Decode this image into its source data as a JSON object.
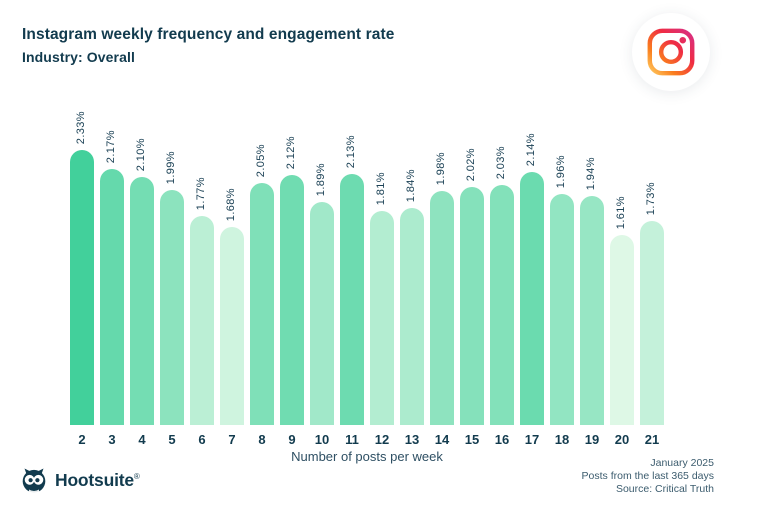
{
  "header": {
    "title": "Instagram weekly frequency and engagement rate",
    "subtitle": "Industry: Overall"
  },
  "chart_data": {
    "type": "bar",
    "title": "Instagram weekly frequency and engagement rate",
    "subtitle": "Industry: Overall",
    "xlabel": "Number of posts per week",
    "ylabel": "Engagement rate",
    "ylim": [
      0,
      2.33
    ],
    "grid": false,
    "legend": "none",
    "categories": [
      2,
      3,
      4,
      5,
      6,
      7,
      8,
      9,
      10,
      11,
      12,
      13,
      14,
      15,
      16,
      17,
      18,
      19,
      20,
      21
    ],
    "values": [
      2.33,
      2.17,
      2.1,
      1.99,
      1.77,
      1.68,
      2.05,
      2.12,
      1.89,
      2.13,
      1.81,
      1.84,
      1.98,
      2.02,
      2.03,
      2.14,
      1.96,
      1.94,
      1.61,
      1.73
    ],
    "value_labels": [
      "2.33%",
      "2.17%",
      "2.10%",
      "1.99%",
      "1.77%",
      "1.68%",
      "2.05%",
      "2.12%",
      "1.89%",
      "2.13%",
      "1.81%",
      "1.84%",
      "1.98%",
      "2.02%",
      "2.03%",
      "2.14%",
      "1.96%",
      "1.94%",
      "1.61%",
      "1.73%"
    ],
    "colors": {
      "bar_max": "#42d09b",
      "bar_min": "#def8e6",
      "value_label": "#1c4256",
      "tick_label": "#123b4e"
    }
  },
  "brand": {
    "logo_text": "Hootsuite",
    "registered_mark": "®",
    "logo_color": "#123b4e"
  },
  "footer": {
    "lines": [
      "January 2025",
      "Posts from the last 365 days",
      "Source: Critical Truth"
    ]
  },
  "icons": {
    "instagram_gradient": [
      "#ffd569",
      "#fa7e1e",
      "#ef2c43",
      "#d5308f"
    ]
  }
}
